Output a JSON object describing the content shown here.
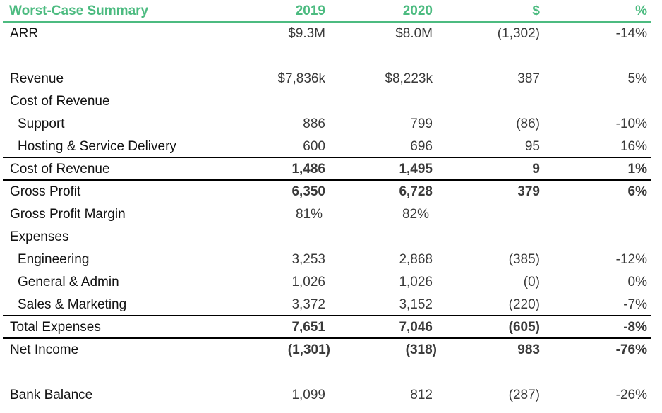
{
  "colors": {
    "header_text": "#4cbb80",
    "header_rule": "#4cbb80",
    "rule": "#000000",
    "text": "#3a3a3a"
  },
  "header": {
    "title": "Worst-Case Summary",
    "col_2019": "2019",
    "col_2020": "2020",
    "col_diff": "$",
    "col_pct": "%"
  },
  "rows": {
    "arr": {
      "label": "ARR",
      "v2019": "$9.3M",
      "v2020": "$8.0M",
      "diff": "(1,302)",
      "pct": "-14%"
    },
    "revenue": {
      "label": "Revenue",
      "v2019": "$7,836k",
      "v2020": "$8,223k",
      "diff": "387",
      "pct": "5%"
    },
    "cost_of_revenue_heading": {
      "label": "Cost of Revenue"
    },
    "support": {
      "label": "Support",
      "v2019": "886",
      "v2020": "799",
      "diff": "(86)",
      "pct": "-10%"
    },
    "hosting": {
      "label": "Hosting & Service Delivery",
      "v2019": "600",
      "v2020": "696",
      "diff": "95",
      "pct": "16%"
    },
    "cost_of_revenue_total": {
      "label": "Cost of Revenue",
      "v2019": "1,486",
      "v2020": "1,495",
      "diff": "9",
      "pct": "1%"
    },
    "gross_profit": {
      "label": "Gross Profit",
      "v2019": "6,350",
      "v2020": "6,728",
      "diff": "379",
      "pct": "6%"
    },
    "gross_margin": {
      "label": "Gross Profit Margin",
      "v2019": "81%",
      "v2020": "82%"
    },
    "expenses_heading": {
      "label": "Expenses"
    },
    "engineering": {
      "label": "Engineering",
      "v2019": "3,253",
      "v2020": "2,868",
      "diff": "(385)",
      "pct": "-12%"
    },
    "ga": {
      "label": "General & Admin",
      "v2019": "1,026",
      "v2020": "1,026",
      "diff": "(0)",
      "pct": "0%"
    },
    "sm": {
      "label": "Sales & Marketing",
      "v2019": "3,372",
      "v2020": "3,152",
      "diff": "(220)",
      "pct": "-7%"
    },
    "total_expenses": {
      "label": "Total Expenses",
      "v2019": "7,651",
      "v2020": "7,046",
      "diff": "(605)",
      "pct": "-8%"
    },
    "net_income": {
      "label": "Net Income",
      "v2019": "(1,301)",
      "v2020": "(318)",
      "diff": "983",
      "pct": "-76%"
    },
    "bank_balance": {
      "label": "Bank Balance",
      "v2019": "1,099",
      "v2020": "812",
      "diff": "(287)",
      "pct": "-26%"
    }
  }
}
